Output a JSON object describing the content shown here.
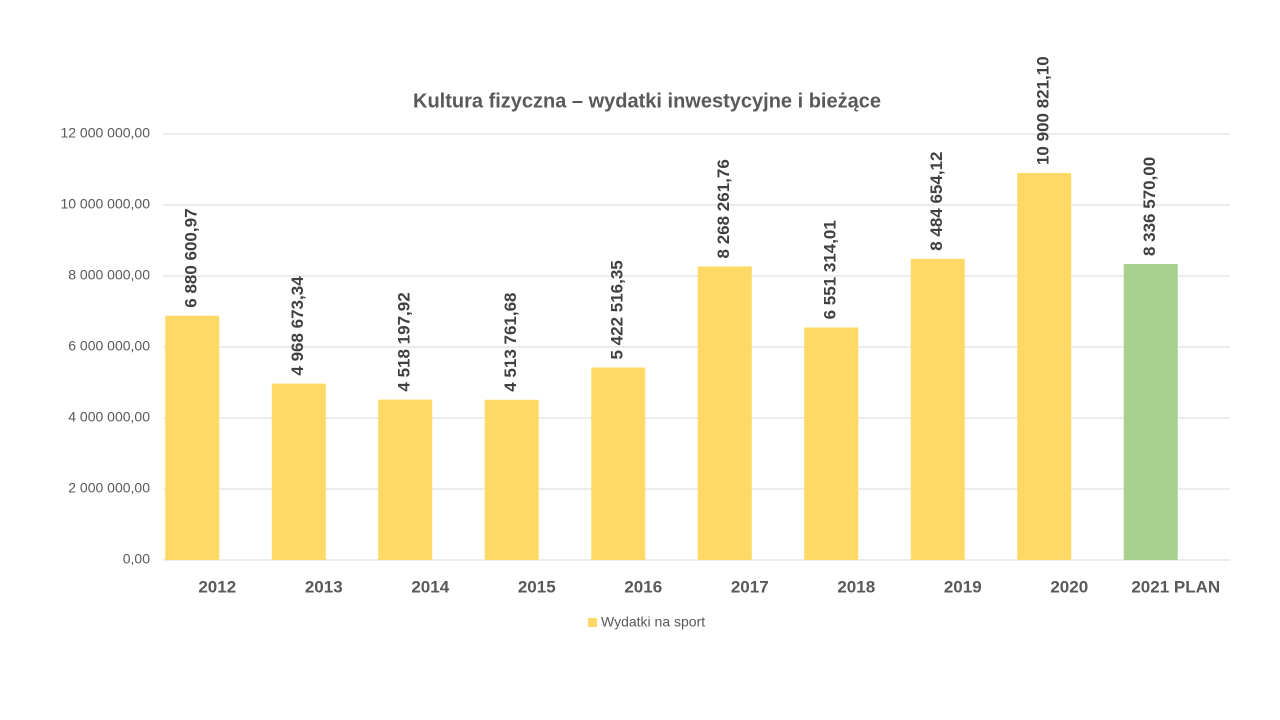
{
  "chart_data": {
    "type": "bar",
    "title": "Kultura fizyczna – wydatki inwestycyjne i bieżące",
    "categories": [
      "2012",
      "2013",
      "2014",
      "2015",
      "2016",
      "2017",
      "2018",
      "2019",
      "2020",
      "2021 PLAN"
    ],
    "series": [
      {
        "name": "Wydatki na sport",
        "color": "#FFD966",
        "colors": [
          "#FFD966",
          "#FFD966",
          "#FFD966",
          "#FFD966",
          "#FFD966",
          "#FFD966",
          "#FFD966",
          "#FFD966",
          "#FFD966",
          "#A9D18E"
        ],
        "values": [
          6880600.97,
          4968673.34,
          4518197.92,
          4513761.68,
          5422516.35,
          8268261.76,
          6551314.01,
          8484654.12,
          10900821.1,
          8336570.0
        ],
        "value_labels": [
          "6 880 600,97",
          "4 968 673,34",
          "4 518 197,92",
          "4 513 761,68",
          "5 422 516,35",
          "8 268 261,76",
          "6 551 314,01",
          "8 484 654,12",
          "10 900 821,10",
          "8 336 570,00"
        ]
      }
    ],
    "ylim": [
      0,
      12000000
    ],
    "yticks": [
      {
        "value": 0,
        "label": "0,00"
      },
      {
        "value": 2000000,
        "label": "2 000 000,00"
      },
      {
        "value": 4000000,
        "label": "4 000 000,00"
      },
      {
        "value": 6000000,
        "label": "6 000 000,00"
      },
      {
        "value": 8000000,
        "label": "8 000 000,00"
      },
      {
        "value": 10000000,
        "label": "10 000 000,00"
      },
      {
        "value": 12000000,
        "label": "12 000 000,00"
      }
    ],
    "grid": true,
    "legend": "bottom"
  }
}
